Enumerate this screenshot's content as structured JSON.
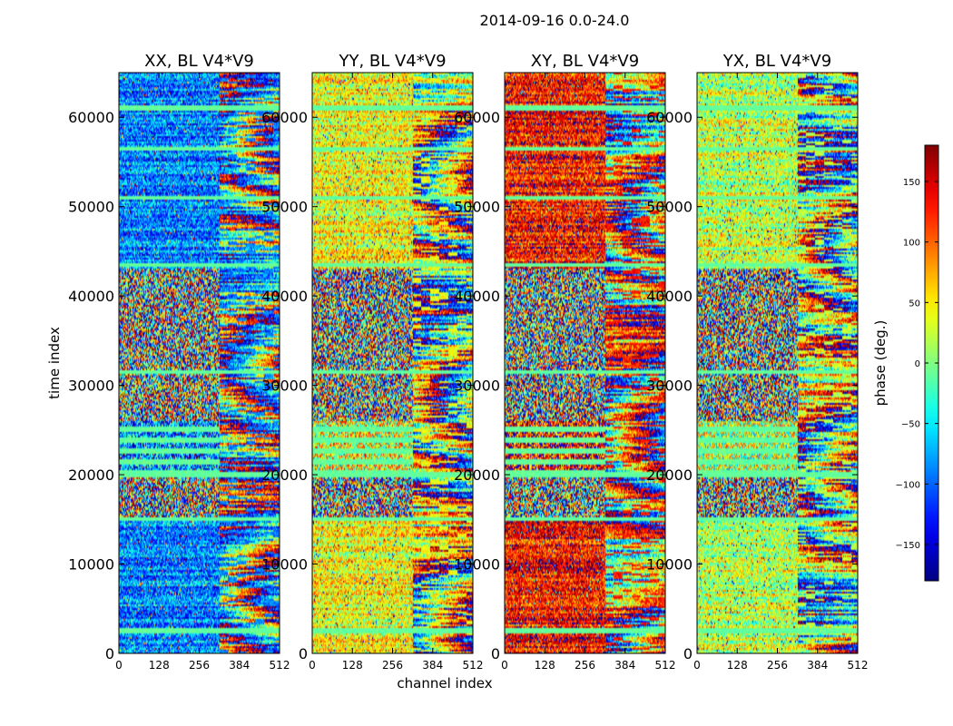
{
  "chart_data": {
    "type": "heatmap",
    "title": "2014-09-16 0.0-24.0",
    "xlabel": "channel index",
    "ylabel": "time index",
    "xlim": [
      0,
      512
    ],
    "ylim": [
      0,
      65000
    ],
    "x_ticks": [
      0,
      128,
      256,
      384,
      512
    ],
    "y_ticks": [
      0,
      10000,
      20000,
      30000,
      40000,
      50000,
      60000
    ],
    "panels": [
      {
        "title": "XX, BL V4*V9",
        "base_phase": -90
      },
      {
        "title": "YY, BL V4*V9",
        "base_phase": 40
      },
      {
        "title": "XY, BL V4*V9",
        "base_phase": 130
      },
      {
        "title": "YX, BL V4*V9",
        "base_phase": 20
      }
    ],
    "colorbar": {
      "label": "phase (deg.)",
      "range": [
        -180,
        180
      ],
      "ticks": [
        -150,
        -100,
        -50,
        0,
        50,
        100,
        150
      ],
      "tick_labels": [
        "−150",
        "−100",
        "−50",
        "0",
        "50",
        "100",
        "150"
      ],
      "colormap": "jet"
    },
    "structure": {
      "noisy_time_bands": [
        [
          15000,
          20000
        ],
        [
          26000,
          43000
        ]
      ],
      "flat_time_bands": [
        [
          20000,
          26000
        ]
      ],
      "fringing_channel_start": 320,
      "bright_horizontal_lines": [
        2500,
        15000,
        20000,
        31500,
        43500,
        51000,
        56500,
        61000
      ]
    }
  }
}
